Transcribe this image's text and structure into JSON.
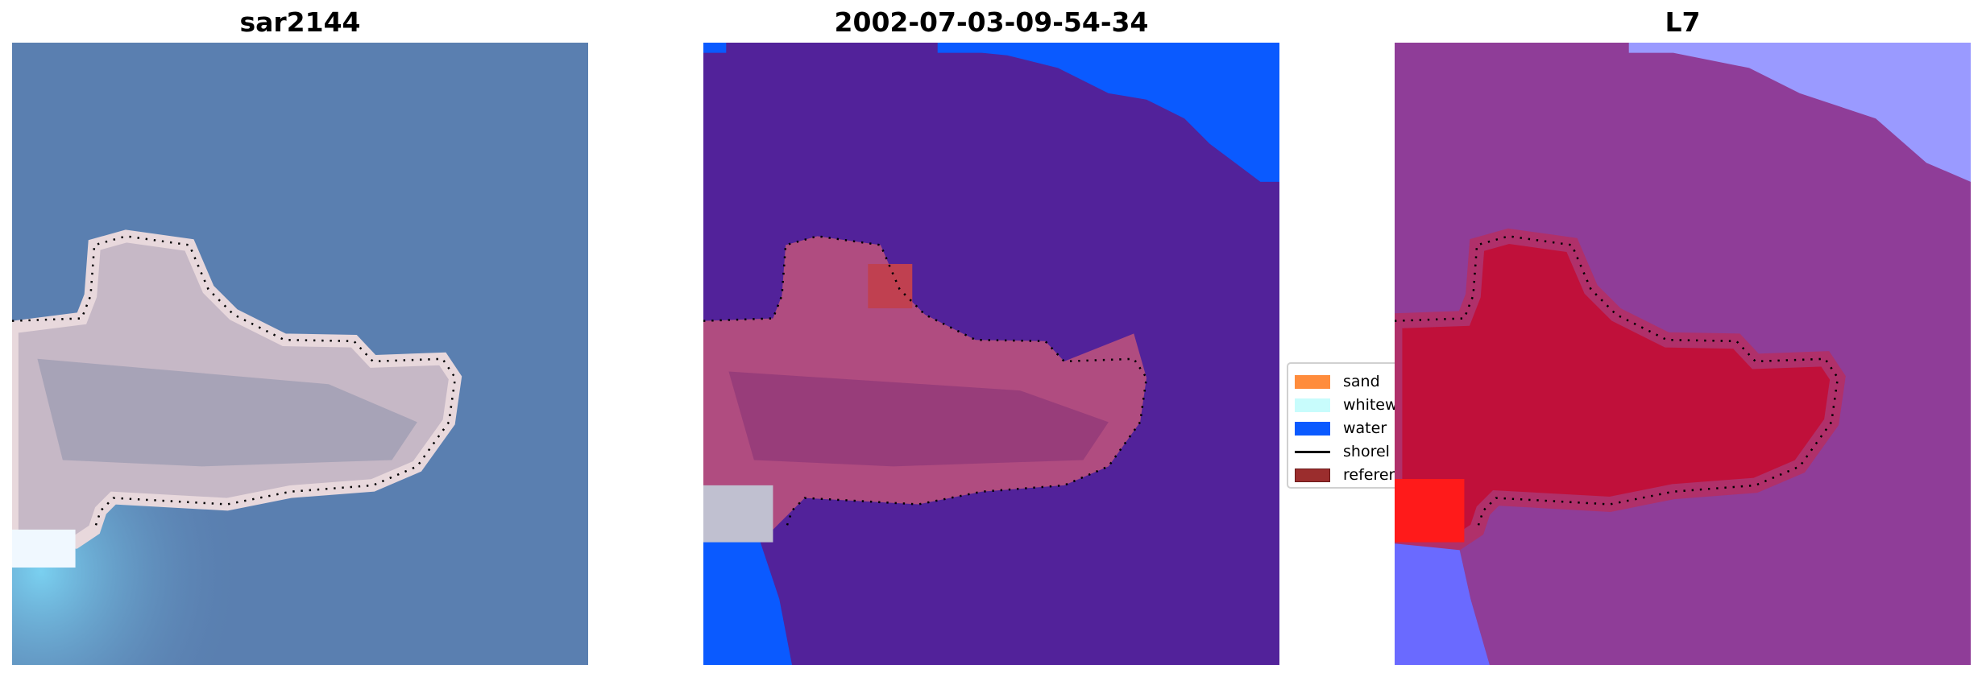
{
  "panels": [
    {
      "title": "sar2144"
    },
    {
      "title": "2002-07-03-09-54-34"
    },
    {
      "title": "L7"
    }
  ],
  "legend": {
    "items": [
      {
        "label": "sand",
        "color": "#ff8c3c",
        "kind": "patch"
      },
      {
        "label": "whitew",
        "color": "#c8fcfc",
        "kind": "patch"
      },
      {
        "label": "water",
        "color": "#0a5aff",
        "kind": "patch"
      },
      {
        "label": "shorel",
        "color": "#000000",
        "kind": "line"
      },
      {
        "label": "referer",
        "color": "#9b2d2d",
        "kind": "patch"
      }
    ]
  },
  "colors": {
    "rgb_water": "#5a7fb0",
    "class_water_other": "#52229a",
    "class_water": "#0a5aff",
    "class_reference": "#b04c80",
    "prob_background": "#8f3d98",
    "prob_land": "#c0103a",
    "prob_water": "#9a9aff"
  }
}
